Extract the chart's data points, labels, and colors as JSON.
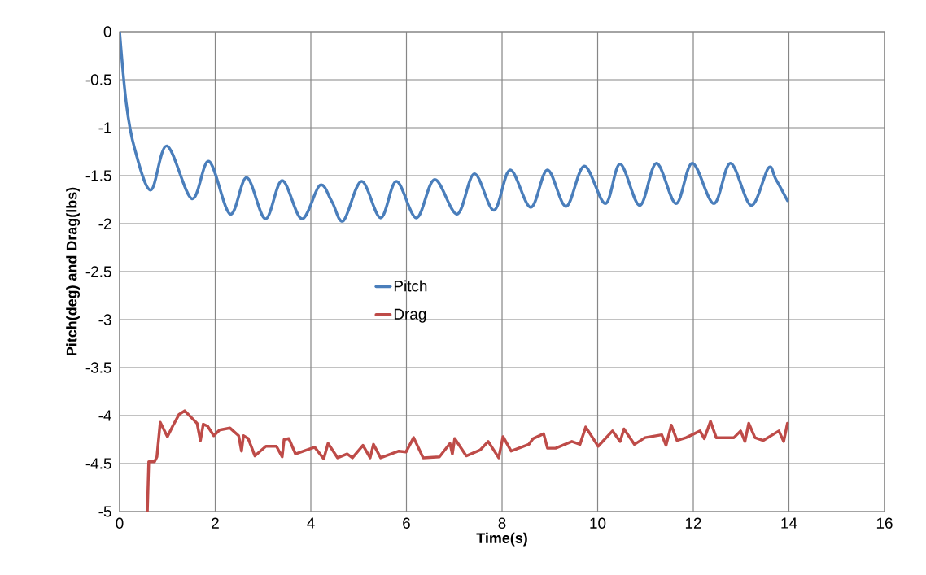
{
  "chart_data": {
    "type": "line",
    "xlabel": "Time(s)",
    "ylabel": "Pitch(deg) and Drag(lbs)",
    "xlim": [
      0,
      16
    ],
    "xticks": [
      0,
      2,
      4,
      6,
      8,
      10,
      12,
      14,
      16
    ],
    "ylim": [
      -5,
      0
    ],
    "yticks": [
      -5,
      -4.5,
      -4,
      -3.5,
      -3,
      -2.5,
      -2,
      -1.5,
      -1,
      -0.5,
      0
    ],
    "grid": true,
    "legend": "center",
    "marker": "none",
    "line_style": "solid",
    "series": [
      {
        "name": "Pitch",
        "color": "#4a7ebb",
        "x": [
          0,
          0.14,
          0.31,
          0.65,
          0.99,
          1.51,
          1.87,
          2.31,
          2.66,
          3.05,
          3.4,
          3.81,
          4.19,
          4.44,
          4.68,
          5.06,
          5.46,
          5.79,
          6.21,
          6.59,
          7.06,
          7.42,
          7.83,
          8.17,
          8.6,
          8.95,
          9.34,
          9.72,
          10.16,
          10.47,
          10.88,
          11.23,
          11.64,
          11.98,
          12.43,
          12.78,
          13.21,
          13.57,
          13.72,
          13.97
        ],
        "values": [
          0,
          -0.75,
          -1.21,
          -1.65,
          -1.19,
          -1.74,
          -1.35,
          -1.9,
          -1.52,
          -1.95,
          -1.55,
          -1.95,
          -1.6,
          -1.77,
          -1.97,
          -1.56,
          -1.94,
          -1.56,
          -1.94,
          -1.54,
          -1.9,
          -1.48,
          -1.86,
          -1.44,
          -1.83,
          -1.44,
          -1.82,
          -1.4,
          -1.79,
          -1.38,
          -1.81,
          -1.37,
          -1.79,
          -1.37,
          -1.79,
          -1.37,
          -1.81,
          -1.42,
          -1.53,
          -1.76
        ]
      },
      {
        "name": "Drag",
        "color": "#be4b48",
        "x": [
          0.58,
          0.61,
          0.73,
          0.78,
          0.85,
          1.0,
          1.11,
          1.24,
          1.36,
          1.5,
          1.62,
          1.69,
          1.75,
          1.84,
          1.97,
          2.09,
          2.31,
          2.49,
          2.55,
          2.59,
          2.69,
          2.83,
          3.06,
          3.28,
          3.4,
          3.44,
          3.54,
          3.68,
          4.08,
          4.27,
          4.36,
          4.56,
          4.76,
          4.87,
          5.09,
          5.24,
          5.31,
          5.46,
          5.84,
          5.99,
          6.15,
          6.35,
          6.69,
          6.91,
          6.96,
          7.01,
          7.25,
          7.54,
          7.71,
          7.93,
          8.02,
          8.19,
          8.56,
          8.65,
          8.87,
          8.95,
          9.12,
          9.46,
          9.63,
          9.75,
          10.01,
          10.31,
          10.47,
          10.55,
          10.77,
          10.99,
          11.34,
          11.43,
          11.54,
          11.66,
          11.85,
          12.14,
          12.23,
          12.36,
          12.48,
          12.85,
          12.99,
          13.08,
          13.16,
          13.29,
          13.46,
          13.79,
          13.89,
          13.97
        ],
        "values": [
          -5.0,
          -4.48,
          -4.48,
          -4.43,
          -4.07,
          -4.22,
          -4.11,
          -3.99,
          -3.95,
          -4.02,
          -4.08,
          -4.26,
          -4.09,
          -4.11,
          -4.21,
          -4.15,
          -4.13,
          -4.21,
          -4.37,
          -4.21,
          -4.24,
          -4.42,
          -4.32,
          -4.32,
          -4.43,
          -4.25,
          -4.24,
          -4.4,
          -4.33,
          -4.45,
          -4.29,
          -4.44,
          -4.4,
          -4.44,
          -4.31,
          -4.44,
          -4.3,
          -4.44,
          -4.37,
          -4.38,
          -4.23,
          -4.44,
          -4.43,
          -4.29,
          -4.4,
          -4.24,
          -4.42,
          -4.36,
          -4.27,
          -4.44,
          -4.22,
          -4.37,
          -4.3,
          -4.24,
          -4.19,
          -4.34,
          -4.34,
          -4.27,
          -4.3,
          -4.12,
          -4.32,
          -4.16,
          -4.27,
          -4.14,
          -4.3,
          -4.23,
          -4.2,
          -4.31,
          -4.1,
          -4.26,
          -4.23,
          -4.16,
          -4.24,
          -4.06,
          -4.23,
          -4.23,
          -4.16,
          -4.27,
          -4.08,
          -4.23,
          -4.26,
          -4.16,
          -4.27,
          -4.08
        ]
      }
    ]
  }
}
